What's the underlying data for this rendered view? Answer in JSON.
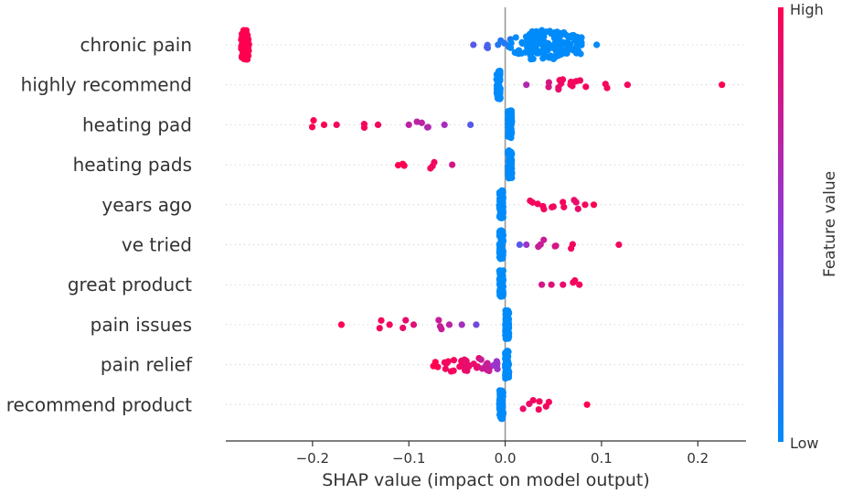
{
  "chart_data": {
    "type": "scatter",
    "subtype": "shap-beeswarm",
    "xlabel": "SHAP value (impact on model output)",
    "xlim": [
      -0.29,
      0.25
    ],
    "xticks": [
      -0.2,
      -0.1,
      0.0,
      0.1,
      0.2
    ],
    "xtick_labels": [
      "−0.2",
      "−0.1",
      "0.0",
      "0.1",
      "0.2"
    ],
    "colorbar": {
      "title": "Feature value",
      "high_label": "High",
      "low_label": "Low",
      "low_color": "#008bfb",
      "mid_color": "#8f3ad8",
      "high_color": "#ff0051"
    },
    "axis_color": "#333333",
    "zero_line_color": "#999999",
    "row_line_color": "#cccccc",
    "features": [
      {
        "name": "chronic pain",
        "points": [
          {
            "x": -0.27,
            "n": 90,
            "spread": 0.004,
            "fv": 1.0
          },
          {
            "x": -0.033,
            "n": 1,
            "fv": 0.3
          },
          {
            "x": -0.015,
            "n": 3,
            "spread": 0.008,
            "fv": 0.25
          },
          {
            "x": 0.0,
            "n": 6,
            "spread": 0.01,
            "fv": 0.12
          },
          {
            "x": 0.02,
            "n": 30,
            "spread": 0.015,
            "fv": 0.0
          },
          {
            "x": 0.045,
            "n": 90,
            "spread": 0.02,
            "fv": 0.0
          },
          {
            "x": 0.07,
            "n": 30,
            "spread": 0.01,
            "fv": 0.0
          },
          {
            "x": 0.095,
            "n": 1,
            "fv": 0.0
          }
        ]
      },
      {
        "name": "highly recommend",
        "points": [
          {
            "x": -0.007,
            "n": 80,
            "spread": 0.002,
            "fv": 0.0
          },
          {
            "x": 0.022,
            "n": 1,
            "fv": 0.65
          },
          {
            "x": 0.042,
            "n": 2,
            "spread": 0.004,
            "fv": 0.82
          },
          {
            "x": 0.055,
            "n": 3,
            "spread": 0.004,
            "fv": 0.9
          },
          {
            "x": 0.065,
            "n": 8,
            "spread": 0.01,
            "fv": 0.95
          },
          {
            "x": 0.08,
            "n": 2,
            "spread": 0.004,
            "fv": 0.95
          },
          {
            "x": 0.1,
            "n": 2,
            "spread": 0.007,
            "fv": 0.95
          },
          {
            "x": 0.127,
            "n": 1,
            "fv": 0.95
          },
          {
            "x": 0.225,
            "n": 1,
            "fv": 1.0
          }
        ]
      },
      {
        "name": "heating pad",
        "points": [
          {
            "x": 0.005,
            "n": 80,
            "spread": 0.002,
            "fv": 0.0
          },
          {
            "x": -0.2,
            "n": 2,
            "spread": 0.003,
            "fv": 1.0
          },
          {
            "x": -0.188,
            "n": 1,
            "fv": 1.0
          },
          {
            "x": -0.175,
            "n": 1,
            "fv": 0.95
          },
          {
            "x": -0.147,
            "n": 2,
            "spread": 0.004,
            "fv": 0.95
          },
          {
            "x": -0.132,
            "n": 1,
            "fv": 0.95
          },
          {
            "x": -0.1,
            "n": 1,
            "fv": 0.7
          },
          {
            "x": -0.09,
            "n": 2,
            "spread": 0.004,
            "fv": 0.7
          },
          {
            "x": -0.077,
            "n": 2,
            "spread": 0.004,
            "fv": 0.65
          },
          {
            "x": -0.063,
            "n": 1,
            "fv": 0.6
          },
          {
            "x": -0.036,
            "n": 1,
            "fv": 0.3
          }
        ]
      },
      {
        "name": "heating pads",
        "points": [
          {
            "x": 0.005,
            "n": 80,
            "spread": 0.002,
            "fv": 0.0
          },
          {
            "x": -0.108,
            "n": 3,
            "spread": 0.004,
            "fv": 1.0
          },
          {
            "x": -0.075,
            "n": 3,
            "spread": 0.004,
            "fv": 0.95
          },
          {
            "x": -0.055,
            "n": 1,
            "fv": 0.8
          }
        ]
      },
      {
        "name": "years ago",
        "points": [
          {
            "x": -0.004,
            "n": 80,
            "spread": 0.002,
            "fv": 0.0
          },
          {
            "x": 0.025,
            "n": 2,
            "spread": 0.004,
            "fv": 0.95
          },
          {
            "x": 0.037,
            "n": 3,
            "spread": 0.005,
            "fv": 0.95
          },
          {
            "x": 0.05,
            "n": 2,
            "spread": 0.004,
            "fv": 0.95
          },
          {
            "x": 0.06,
            "n": 2,
            "spread": 0.004,
            "fv": 0.95
          },
          {
            "x": 0.072,
            "n": 3,
            "spread": 0.005,
            "fv": 0.9
          },
          {
            "x": 0.083,
            "n": 1,
            "fv": 0.95
          },
          {
            "x": 0.092,
            "n": 1,
            "fv": 1.0
          }
        ]
      },
      {
        "name": "ve tried",
        "points": [
          {
            "x": -0.004,
            "n": 80,
            "spread": 0.002,
            "fv": 0.0
          },
          {
            "x": 0.015,
            "n": 1,
            "fv": 0.3
          },
          {
            "x": 0.022,
            "n": 1,
            "fv": 0.55
          },
          {
            "x": 0.038,
            "n": 3,
            "spread": 0.005,
            "fv": 0.75
          },
          {
            "x": 0.05,
            "n": 2,
            "spread": 0.005,
            "fv": 0.8
          },
          {
            "x": 0.07,
            "n": 2,
            "spread": 0.005,
            "fv": 0.95
          },
          {
            "x": 0.118,
            "n": 1,
            "fv": 0.95
          }
        ]
      },
      {
        "name": "great product",
        "points": [
          {
            "x": -0.004,
            "n": 80,
            "spread": 0.002,
            "fv": 0.0
          },
          {
            "x": 0.038,
            "n": 1,
            "fv": 0.8
          },
          {
            "x": 0.048,
            "n": 1,
            "fv": 0.85
          },
          {
            "x": 0.06,
            "n": 1,
            "fv": 0.9
          },
          {
            "x": 0.07,
            "n": 2,
            "spread": 0.003,
            "fv": 0.95
          },
          {
            "x": 0.077,
            "n": 1,
            "fv": 0.95
          }
        ]
      },
      {
        "name": "pain issues",
        "points": [
          {
            "x": 0.002,
            "n": 80,
            "spread": 0.002,
            "fv": 0.0
          },
          {
            "x": -0.17,
            "n": 1,
            "fv": 1.0
          },
          {
            "x": -0.13,
            "n": 2,
            "spread": 0.003,
            "fv": 0.95
          },
          {
            "x": -0.12,
            "n": 1,
            "fv": 0.95
          },
          {
            "x": -0.104,
            "n": 2,
            "spread": 0.003,
            "fv": 0.9
          },
          {
            "x": -0.095,
            "n": 1,
            "fv": 0.85
          },
          {
            "x": -0.068,
            "n": 3,
            "spread": 0.004,
            "fv": 0.75
          },
          {
            "x": -0.058,
            "n": 1,
            "fv": 0.7
          },
          {
            "x": -0.045,
            "n": 1,
            "fv": 0.6
          },
          {
            "x": -0.03,
            "n": 1,
            "fv": 0.4
          }
        ]
      },
      {
        "name": "pain relief",
        "points": [
          {
            "x": 0.002,
            "n": 80,
            "spread": 0.002,
            "fv": 0.0
          },
          {
            "x": -0.072,
            "n": 3,
            "spread": 0.003,
            "fv": 1.0
          },
          {
            "x": -0.055,
            "n": 10,
            "spread": 0.01,
            "fv": 0.95
          },
          {
            "x": -0.035,
            "n": 16,
            "spread": 0.008,
            "fv": 0.9
          },
          {
            "x": -0.02,
            "n": 10,
            "spread": 0.005,
            "fv": 0.75
          },
          {
            "x": -0.01,
            "n": 6,
            "spread": 0.003,
            "fv": 0.55
          }
        ]
      },
      {
        "name": "recommend product",
        "points": [
          {
            "x": -0.004,
            "n": 80,
            "spread": 0.002,
            "fv": 0.0
          },
          {
            "x": 0.022,
            "n": 2,
            "spread": 0.004,
            "fv": 0.9
          },
          {
            "x": 0.033,
            "n": 3,
            "spread": 0.004,
            "fv": 0.95
          },
          {
            "x": 0.045,
            "n": 2,
            "spread": 0.003,
            "fv": 0.95
          },
          {
            "x": 0.085,
            "n": 1,
            "fv": 1.0
          }
        ]
      }
    ]
  }
}
